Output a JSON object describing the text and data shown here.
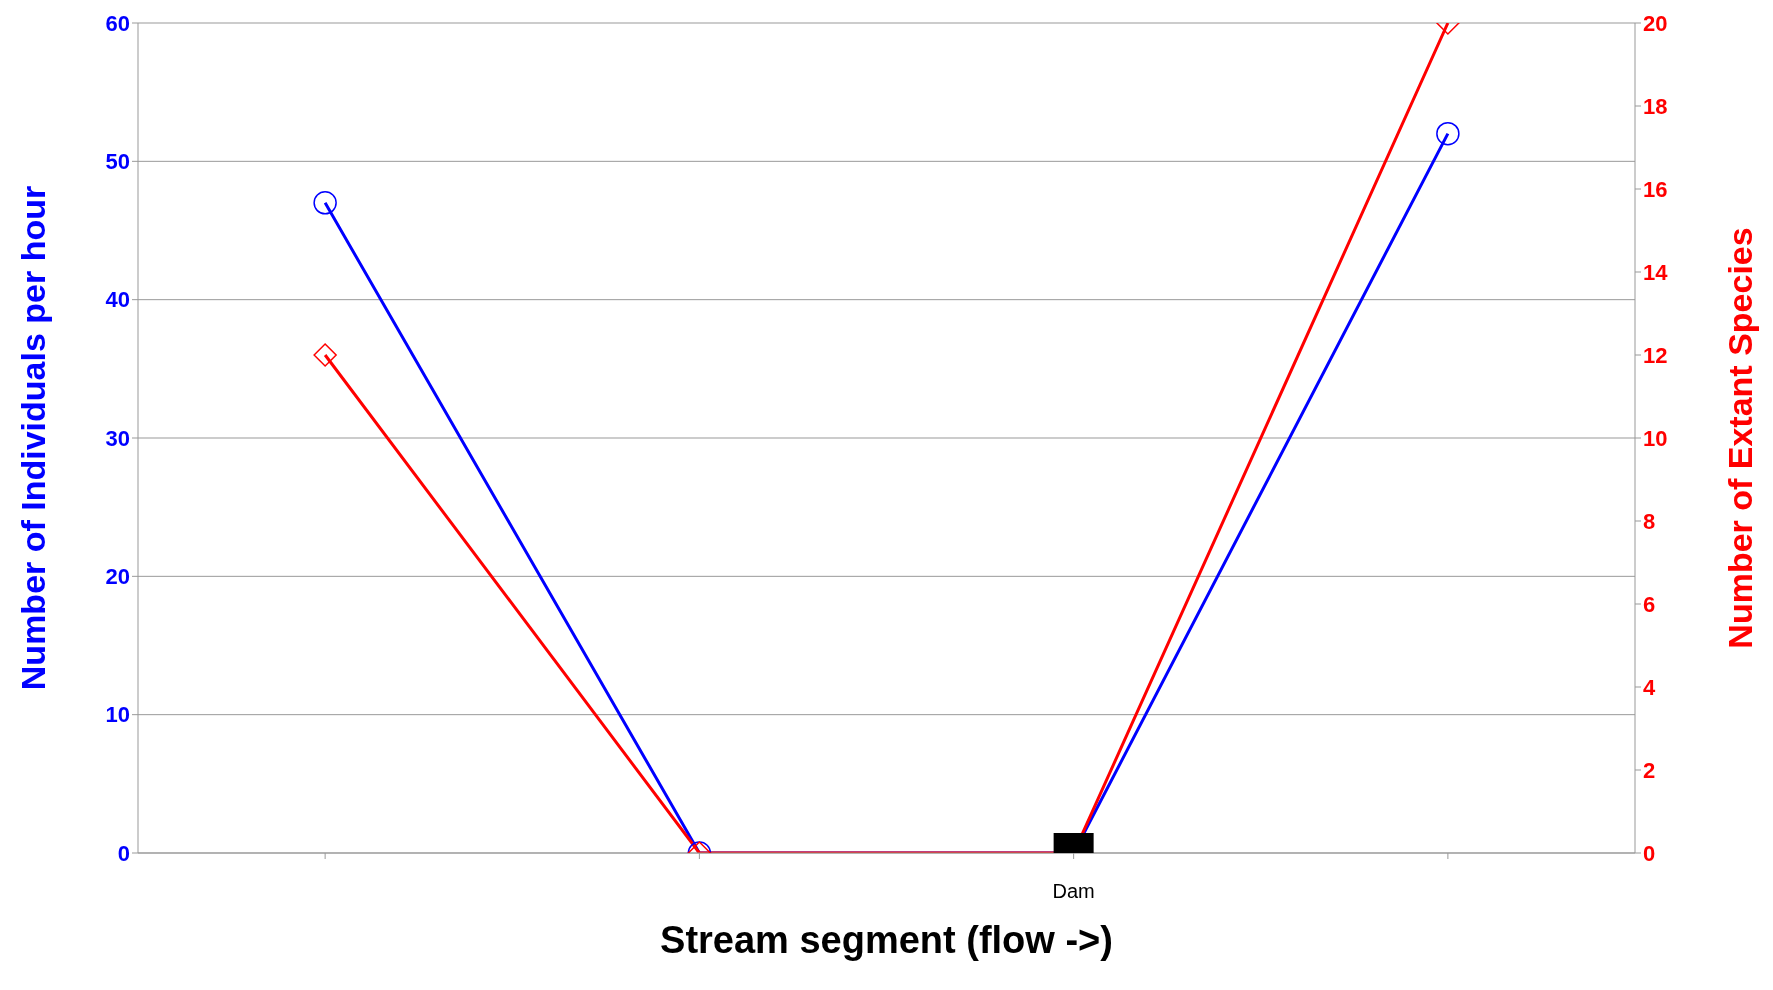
{
  "chart_data": {
    "type": "line",
    "xlabel": "Stream segment (flow ->)",
    "ylabel": "Number of Individuals per hour",
    "y2label": "Number of Extant Species",
    "categories": [
      null,
      null,
      null,
      null
    ],
    "series": [
      {
        "name": null,
        "color": "#0000ff",
        "values": [
          47,
          0,
          0,
          52
        ],
        "marker": "circle"
      },
      {
        "name": null,
        "color": "#ff0000",
        "values": [
          12,
          0,
          0,
          20
        ],
        "axis": "y2",
        "marker": "diamond"
      },
      {
        "type": "scatter",
        "name": "Dam",
        "color": "#000000",
        "values": [
          null,
          null,
          0,
          null
        ],
        "marker": "square"
      }
    ],
    "ylim": [
      0,
      60
    ],
    "yticks": [
      0,
      10,
      20,
      30,
      40,
      50,
      60
    ],
    "y2lim": [
      0,
      20
    ],
    "y2ticks": [
      0,
      2,
      4,
      6,
      8,
      10,
      12,
      14,
      16,
      18,
      20
    ],
    "grid": "y",
    "legend": false
  }
}
